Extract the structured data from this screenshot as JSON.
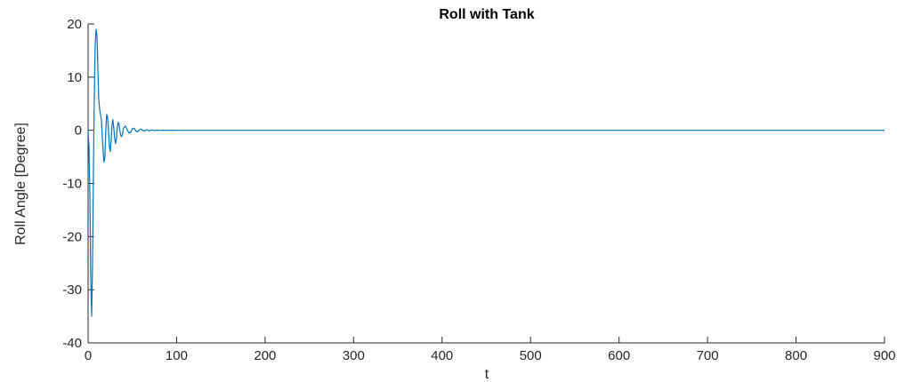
{
  "chart_data": {
    "type": "line",
    "title": "Roll with Tank",
    "xlabel": "t",
    "ylabel": "Roll Angle [Degree]",
    "xlim": [
      0,
      900
    ],
    "ylim": [
      -40,
      20
    ],
    "xticks": [
      0,
      100,
      200,
      300,
      400,
      500,
      600,
      700,
      800,
      900
    ],
    "yticks": [
      -40,
      -30,
      -20,
      -10,
      0,
      10,
      20
    ],
    "xtick_labels": [
      "0",
      "100",
      "200",
      "300",
      "400",
      "500",
      "600",
      "700",
      "800",
      "900"
    ],
    "ytick_labels": [
      "-40",
      "-30",
      "-20",
      "-10",
      "0",
      "10",
      "20"
    ],
    "grid": false,
    "axes_box": "left-bottom",
    "series": [
      {
        "color": "#0072bd",
        "x": [
          0,
          1,
          2,
          3,
          4,
          5,
          6,
          7,
          8,
          9,
          10,
          11,
          12,
          13,
          14,
          15,
          16,
          17,
          18,
          19,
          20,
          21,
          22,
          23,
          24,
          25,
          26,
          27,
          28,
          29,
          30,
          31,
          32,
          33,
          34,
          35,
          36,
          37,
          38,
          39,
          40,
          42,
          44,
          46,
          48,
          50,
          52,
          54,
          56,
          58,
          60,
          63,
          66,
          69,
          72,
          75,
          78,
          81,
          85,
          90,
          95,
          100,
          110,
          120,
          140,
          200,
          300,
          500,
          700,
          900
        ],
        "y": [
          0,
          -3,
          -12,
          -28,
          -35,
          -25,
          -8,
          6,
          16,
          19,
          18,
          12,
          6,
          4,
          3,
          2,
          -1,
          -4,
          -6,
          -5,
          0,
          3,
          2.5,
          0,
          -3,
          -4,
          -2,
          1,
          2,
          0.5,
          -1.5,
          -2.5,
          -1.5,
          0.5,
          1.5,
          1.2,
          -0.2,
          -1,
          -1.2,
          -0.6,
          0.4,
          0.8,
          0.2,
          -0.5,
          -0.4,
          0.3,
          0.4,
          -0.1,
          -0.3,
          0.1,
          0.2,
          -0.15,
          0.1,
          -0.08,
          0.06,
          -0.04,
          0.03,
          -0.02,
          0.01,
          -0.005,
          0.003,
          0,
          0,
          0,
          0,
          0,
          0,
          0,
          0,
          0
        ]
      }
    ]
  }
}
